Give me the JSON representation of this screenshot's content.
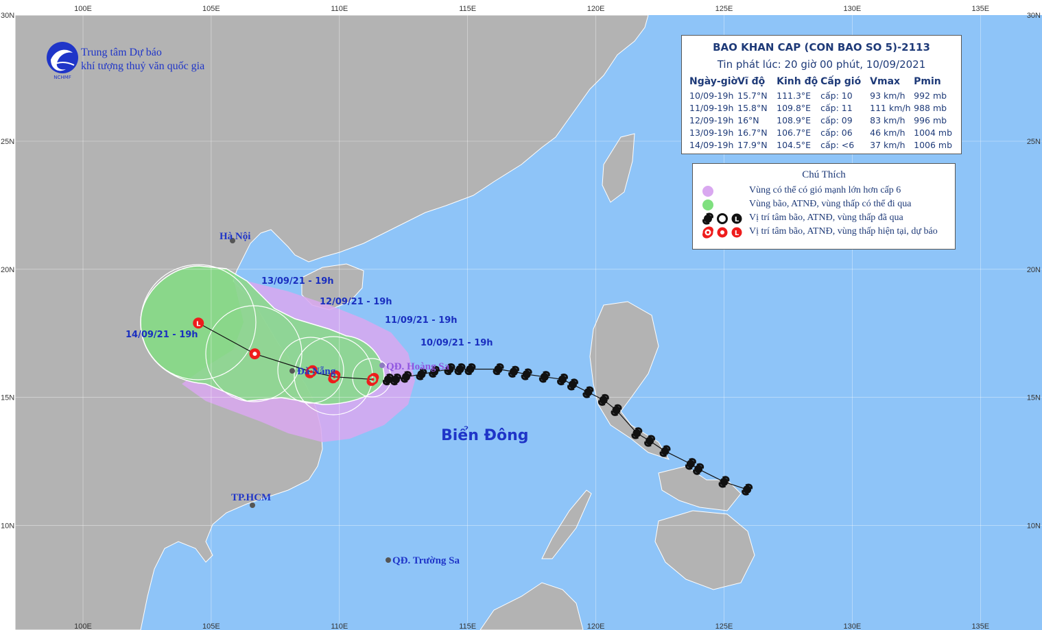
{
  "header": {
    "org_line1": "Trung tâm Dự báo",
    "org_line2": "khí tượng thuỷ văn quốc gia",
    "logo_text": "NCHMF"
  },
  "bulletin": {
    "title": "BAO KHAN CAP (CON BAO SO 5)-2113",
    "issued": "Tin phát lúc: 20 giờ 00 phút, 10/09/2021",
    "columns": [
      "Ngày-giờ",
      "Vĩ độ",
      "Kinh độ",
      "Cấp gió",
      "Vmax",
      "Pmin"
    ],
    "rows": [
      [
        "10/09-19h",
        "15.7°N",
        "111.3°E",
        "cấp: 10",
        "93 km/h",
        "992 mb"
      ],
      [
        "11/09-19h",
        "15.8°N",
        "109.8°E",
        "cấp: 11",
        "111 km/h",
        "988 mb"
      ],
      [
        "12/09-19h",
        "16°N",
        "108.9°E",
        "cấp: 09",
        "83 km/h",
        "996 mb"
      ],
      [
        "13/09-19h",
        "16.7°N",
        "106.7°E",
        "cấp: 06",
        "46 km/h",
        "1004 mb"
      ],
      [
        "14/09-19h",
        "17.9°N",
        "104.5°E",
        "cấp: <6",
        "37 km/h",
        "1006 mb"
      ]
    ]
  },
  "legend": {
    "title": "Chú Thích",
    "items": [
      {
        "label": "Vùng có thể có gió mạnh lớn hơn cấp 6",
        "color": "#d9a8f0"
      },
      {
        "label": "Vùng bão, ATNĐ, vùng thấp có thể đi qua",
        "color": "#7fe07f"
      },
      {
        "label": "Vị trí tâm bão, ATNĐ, vùng thấp đã qua",
        "color": "#111111"
      },
      {
        "label": "Vị trí tâm bão, ATNĐ, vùng thấp hiện tại, dự báo",
        "color": "#ee1c1c"
      }
    ]
  },
  "map": {
    "sea_color": "#8ec4f8",
    "land_color": "#b3b3b3",
    "lon_labels_top": [
      "100E",
      "105E",
      "110E",
      "115E",
      "120E",
      "125E",
      "130E",
      "135E"
    ],
    "lon_labels_bottom": [
      "100E",
      "105E",
      "110E",
      "115E",
      "120E",
      "125E",
      "130E",
      "135E"
    ],
    "lat_labels": [
      "30N",
      "25N",
      "20N",
      "15N",
      "10N"
    ],
    "sea_name": "Biển Đông",
    "places": [
      {
        "name": "Hà Nội"
      },
      {
        "name": "TP.HCM"
      },
      {
        "name": "Đà Nẵng"
      },
      {
        "name": "QĐ. Hoàng Sa"
      },
      {
        "name": "QĐ. Trường Sa"
      }
    ],
    "forecast_labels": [
      "10/09/21 - 19h",
      "11/09/21 - 19h",
      "12/09/21 - 19h",
      "13/09/21 - 19h",
      "14/09/21 - 19h"
    ],
    "forecast_track": [
      {
        "lat": 15.7,
        "lon": 111.3,
        "symbol": "storm"
      },
      {
        "lat": 15.8,
        "lon": 109.8,
        "symbol": "storm"
      },
      {
        "lat": 16.0,
        "lon": 108.9,
        "symbol": "storm"
      },
      {
        "lat": 16.7,
        "lon": 106.7,
        "symbol": "depression"
      },
      {
        "lat": 17.9,
        "lon": 104.5,
        "symbol": "low"
      }
    ],
    "past_track": [
      {
        "lat": 11.4,
        "lon": 125.9
      },
      {
        "lat": 11.7,
        "lon": 125.0
      },
      {
        "lat": 12.2,
        "lon": 124.0
      },
      {
        "lat": 12.4,
        "lon": 123.7
      },
      {
        "lat": 12.9,
        "lon": 122.7
      },
      {
        "lat": 13.3,
        "lon": 122.1
      },
      {
        "lat": 13.6,
        "lon": 121.6
      },
      {
        "lat": 14.5,
        "lon": 120.8
      },
      {
        "lat": 14.9,
        "lon": 120.3
      },
      {
        "lat": 15.2,
        "lon": 119.7
      },
      {
        "lat": 15.5,
        "lon": 119.1
      },
      {
        "lat": 15.7,
        "lon": 118.7
      },
      {
        "lat": 15.8,
        "lon": 118.0
      },
      {
        "lat": 15.9,
        "lon": 117.3
      },
      {
        "lat": 16.0,
        "lon": 116.8
      },
      {
        "lat": 16.1,
        "lon": 116.2
      },
      {
        "lat": 16.1,
        "lon": 115.1
      },
      {
        "lat": 16.1,
        "lon": 114.7
      },
      {
        "lat": 16.1,
        "lon": 114.3
      },
      {
        "lat": 16.0,
        "lon": 113.7
      },
      {
        "lat": 15.9,
        "lon": 113.2
      },
      {
        "lat": 15.8,
        "lon": 112.6
      },
      {
        "lat": 15.7,
        "lon": 112.2
      },
      {
        "lat": 15.7,
        "lon": 111.9
      }
    ]
  }
}
